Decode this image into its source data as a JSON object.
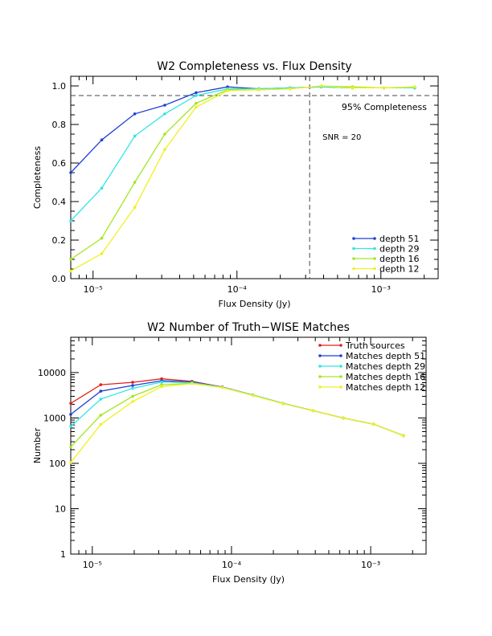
{
  "chart_data": [
    {
      "type": "line",
      "title": "W2 Completeness vs. Flux Density",
      "xlabel": "Flux Density (Jy)",
      "ylabel": "Completeness",
      "xscale": "log",
      "xlim": [
        7e-06,
        0.0025
      ],
      "ylim": [
        0,
        1.05
      ],
      "x_ticks": [
        "10⁻⁵",
        "10⁻⁴",
        "10⁻³"
      ],
      "x_tick_values": [
        1e-05,
        0.0001,
        0.001
      ],
      "y_ticks": [
        "0.0",
        "0.2",
        "0.4",
        "0.6",
        "0.8",
        "1.0"
      ],
      "y_tick_values": [
        0,
        0.2,
        0.4,
        0.6,
        0.8,
        1.0
      ],
      "legend_position": "bottom-right",
      "x": [
        7e-06,
        1.15e-05,
        1.95e-05,
        3.15e-05,
        5.2e-05,
        8.6e-05,
        0.000142,
        0.000234,
        0.000385,
        0.000635,
        0.00105,
        0.00172
      ],
      "series": [
        {
          "name": "depth 51",
          "color": "#1f3fd6",
          "values": [
            0.55,
            0.72,
            0.855,
            0.9,
            0.965,
            0.995,
            0.985,
            0.99,
            0.995,
            0.99,
            0.99,
            0.99
          ]
        },
        {
          "name": "depth 29",
          "color": "#33e5e5",
          "values": [
            0.3,
            0.47,
            0.74,
            0.855,
            0.95,
            0.985,
            0.985,
            0.99,
            0.995,
            0.99,
            0.99,
            0.99
          ]
        },
        {
          "name": "depth 16",
          "color": "#a4e620",
          "values": [
            0.1,
            0.21,
            0.5,
            0.75,
            0.91,
            0.98,
            0.98,
            0.985,
            1.0,
            0.995,
            0.99,
            0.995
          ]
        },
        {
          "name": "depth 12",
          "color": "#f0f020",
          "values": [
            0.04,
            0.13,
            0.37,
            0.67,
            0.89,
            0.975,
            0.98,
            0.985,
            1.0,
            0.99,
            0.99,
            0.995
          ]
        }
      ],
      "reference_lines": {
        "horizontal": {
          "value": 0.95,
          "label": "95% Completeness"
        },
        "vertical": {
          "value": 0.00032,
          "label": "SNR = 20"
        }
      }
    },
    {
      "type": "line",
      "title": "W2 Number of Truth−WISE Matches",
      "xlabel": "Flux Density (Jy)",
      "ylabel": "Number",
      "xscale": "log",
      "yscale": "log",
      "xlim": [
        7e-06,
        0.0025
      ],
      "ylim": [
        1,
        60000
      ],
      "x_ticks": [
        "10⁻⁵",
        "10⁻⁴",
        "10⁻³"
      ],
      "x_tick_values": [
        1e-05,
        0.0001,
        0.001
      ],
      "y_ticks": [
        "1",
        "10",
        "100",
        "1000",
        "10000"
      ],
      "y_tick_values": [
        1,
        10,
        100,
        1000,
        10000
      ],
      "legend_position": "top-right",
      "x": [
        7e-06,
        1.15e-05,
        1.95e-05,
        3.15e-05,
        5.2e-05,
        8.6e-05,
        0.000142,
        0.000234,
        0.000385,
        0.000635,
        0.00105,
        0.00172
      ],
      "series": [
        {
          "name": "Truth sources",
          "color": "#e0201c",
          "values": [
            2100,
            5400,
            6100,
            7300,
            6400,
            4800,
            3200,
            2100,
            1450,
            1000,
            730,
            410
          ]
        },
        {
          "name": "Matches depth 51",
          "color": "#1f3fd6",
          "values": [
            1200,
            3900,
            5200,
            6600,
            6200,
            4800,
            3200,
            2100,
            1450,
            1000,
            730,
            410
          ]
        },
        {
          "name": "Matches depth 29",
          "color": "#33e5e5",
          "values": [
            650,
            2600,
            4500,
            6200,
            6000,
            4750,
            3200,
            2100,
            1450,
            1000,
            730,
            410
          ]
        },
        {
          "name": "Matches depth 16",
          "color": "#a4e620",
          "values": [
            230,
            1150,
            3000,
            5400,
            5800,
            4700,
            3150,
            2080,
            1450,
            1000,
            730,
            410
          ]
        },
        {
          "name": "Matches depth 12",
          "color": "#f0f020",
          "values": [
            105,
            720,
            2300,
            4900,
            5700,
            4700,
            3150,
            2080,
            1450,
            1000,
            730,
            410
          ]
        }
      ]
    }
  ]
}
